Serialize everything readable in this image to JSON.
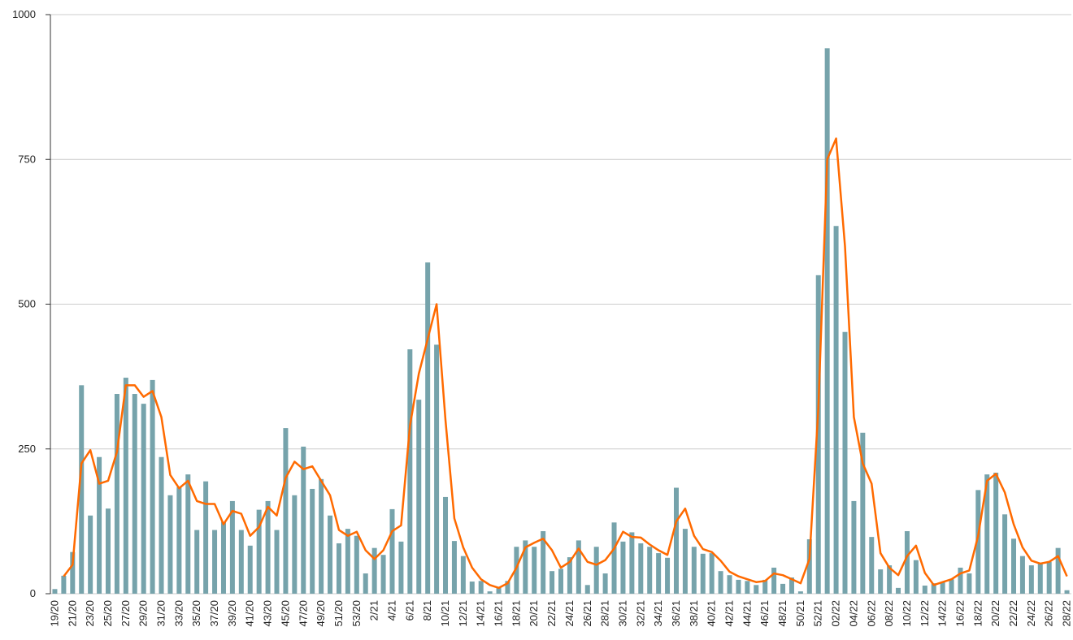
{
  "chart_data": {
    "type": "bar",
    "categories": [
      "19/20",
      null,
      "21/20",
      null,
      "23/20",
      null,
      "25/20",
      null,
      "27/20",
      null,
      "29/20",
      null,
      "31/20",
      null,
      "33/20",
      null,
      "35/20",
      null,
      "37/20",
      null,
      "39/20",
      null,
      "41/20",
      null,
      "43/20",
      null,
      "45/20",
      null,
      "47/20",
      null,
      "49/20",
      null,
      "51/20",
      null,
      "53/20",
      null,
      "2/21",
      null,
      "4/21",
      null,
      "6/21",
      null,
      "8/21",
      null,
      "10/21",
      null,
      "12/21",
      null,
      "14/21",
      null,
      "16/21",
      null,
      "18/21",
      null,
      "20/21",
      null,
      "22/21",
      null,
      "24/21",
      null,
      "26/21",
      null,
      "28/21",
      null,
      "30/21",
      null,
      "32/21",
      null,
      "34/21",
      null,
      "36/21",
      null,
      "38/21",
      null,
      "40/21",
      null,
      "42/21",
      null,
      "44/21",
      null,
      "46/21",
      null,
      "48/21",
      null,
      "50/21",
      null,
      "52/21",
      null,
      "02/22",
      null,
      "04/22",
      null,
      "06/22",
      null,
      "08/22",
      null,
      "10/22",
      null,
      "12/22",
      null,
      "14/22",
      null,
      "16/22",
      null,
      "18/22",
      null,
      "20/22",
      null,
      "22/22",
      null,
      "24/22",
      null,
      "26/22",
      null,
      "28/22"
    ],
    "series": [
      {
        "type": "bar",
        "color": "#76a3ab",
        "values": [
          8,
          31,
          72,
          360,
          135,
          236,
          147,
          345,
          373,
          345,
          328,
          369,
          236,
          170,
          184,
          206,
          110,
          194,
          110,
          124,
          160,
          110,
          83,
          145,
          160,
          110,
          286,
          170,
          254,
          181,
          198,
          135,
          87,
          112,
          100,
          35,
          79,
          67,
          146,
          90,
          422,
          335,
          572,
          430,
          167,
          91,
          65,
          21,
          22,
          4,
          12,
          22,
          81,
          92,
          81,
          108,
          39,
          43,
          63,
          92,
          15,
          81,
          35,
          123,
          90,
          106,
          87,
          81,
          70,
          62,
          183,
          112,
          81,
          69,
          70,
          39,
          32,
          24,
          22,
          15,
          24,
          45,
          17,
          28,
          4,
          94,
          550,
          942,
          635,
          452,
          160,
          278,
          98,
          42,
          49,
          10,
          108,
          58,
          14,
          18,
          20,
          25,
          45,
          35,
          179,
          206,
          209,
          137,
          95,
          65,
          49,
          53,
          55,
          79,
          6
        ]
      },
      {
        "type": "line",
        "color": "#ff6a00",
        "values": [
          null,
          30,
          50,
          225,
          248,
          190,
          195,
          245,
          360,
          360,
          340,
          350,
          305,
          205,
          182,
          195,
          160,
          155,
          155,
          120,
          143,
          138,
          100,
          115,
          150,
          135,
          200,
          228,
          215,
          220,
          195,
          170,
          110,
          100,
          107,
          75,
          60,
          75,
          108,
          118,
          290,
          380,
          440,
          500,
          300,
          130,
          80,
          45,
          25,
          15,
          10,
          18,
          45,
          80,
          88,
          95,
          75,
          45,
          55,
          78,
          55,
          50,
          58,
          78,
          107,
          98,
          97,
          85,
          75,
          67,
          125,
          147,
          100,
          77,
          72,
          57,
          38,
          30,
          25,
          20,
          22,
          35,
          32,
          25,
          18,
          60,
          320,
          750,
          786,
          600,
          305,
          225,
          190,
          70,
          45,
          32,
          65,
          83,
          36,
          15,
          20,
          25,
          35,
          40,
          100,
          195,
          207,
          175,
          120,
          80,
          57,
          52,
          55,
          65,
          30
        ]
      }
    ],
    "ylim": [
      0,
      1000
    ],
    "yticks": [
      0,
      250,
      500,
      750,
      1000
    ],
    "grid": true
  }
}
